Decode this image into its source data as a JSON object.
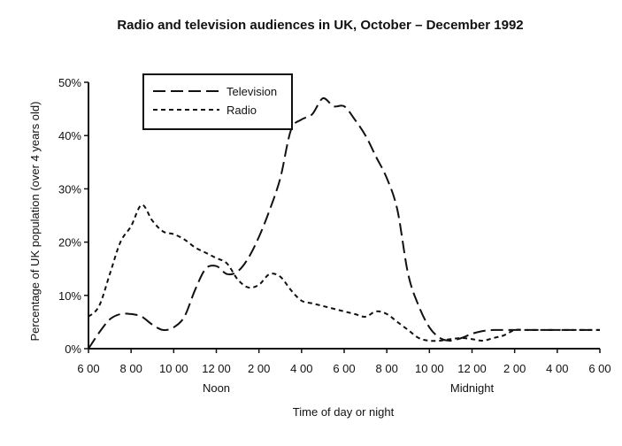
{
  "chart_data": {
    "type": "line",
    "title": "Radio and television audiences in UK, October – December 1992",
    "xlabel": "Time of day or night",
    "ylabel": "Percentage of UK population (over 4 years old)",
    "xlim": [
      0,
      24
    ],
    "ylim": [
      0,
      50
    ],
    "grid": false,
    "legend_position": "top-left",
    "x_tick_labels": [
      "6 00",
      "8 00",
      "10 00",
      "12 00",
      "2 00",
      "4 00",
      "6 00",
      "8 00",
      "10 00",
      "12 00",
      "2 00",
      "4 00",
      "6 00"
    ],
    "x_sublabels": [
      {
        "text": "Noon",
        "under_tick": 3
      },
      {
        "text": "Midnight",
        "under_tick": 9
      }
    ],
    "y_tick_values": [
      0,
      10,
      20,
      30,
      40,
      50
    ],
    "y_tick_labels": [
      "0%",
      "10%",
      "20%",
      "30%",
      "40%",
      "50%"
    ],
    "series": [
      {
        "name": "Television",
        "style": "long-dash",
        "x": [
          0,
          0.5,
          1,
          1.5,
          2,
          2.5,
          3,
          3.5,
          4,
          4.5,
          5,
          5.5,
          6,
          6.5,
          7,
          7.5,
          8,
          8.5,
          9,
          9.5,
          10,
          10.5,
          11,
          11.5,
          12,
          12.5,
          13,
          13.5,
          14,
          14.5,
          15,
          15.5,
          16,
          16.5,
          17,
          17.5,
          18,
          18.5,
          19,
          19.5,
          20,
          20.5,
          21,
          21.5,
          22,
          22.5,
          23,
          23.5,
          24
        ],
        "y": [
          0,
          3,
          5.5,
          6.5,
          6.5,
          6,
          4.5,
          3.5,
          4,
          6,
          11,
          15,
          15.5,
          14,
          14.5,
          17,
          21,
          26,
          32,
          41,
          43,
          44,
          47,
          45.5,
          45.5,
          43,
          40,
          36,
          32,
          26,
          14,
          8,
          4,
          2,
          1.5,
          2,
          2.8,
          3.3,
          3.5,
          3.5,
          3.5,
          3.5,
          3.5,
          3.5,
          3.5,
          3.5,
          3.5,
          3.5,
          3.5
        ]
      },
      {
        "name": "Radio",
        "style": "short-dash",
        "x": [
          0,
          0.5,
          1,
          1.5,
          2,
          2.5,
          3,
          3.5,
          4,
          4.5,
          5,
          5.5,
          6,
          6.5,
          7,
          7.5,
          8,
          8.5,
          9,
          9.5,
          10,
          10.5,
          11,
          11.5,
          12,
          12.5,
          13,
          13.5,
          14,
          14.5,
          15,
          15.5,
          16,
          16.5,
          17,
          17.5,
          18,
          18.5,
          19,
          19.5,
          20,
          20.5,
          21,
          21.5,
          22,
          22.5,
          23,
          23.5,
          24
        ],
        "y": [
          6,
          8,
          14,
          20,
          23,
          27,
          24,
          22,
          21.5,
          20.5,
          19,
          18,
          17,
          16,
          13,
          11.5,
          12,
          14,
          13.5,
          11,
          9,
          8.5,
          8,
          7.5,
          7,
          6.5,
          6,
          7,
          6.5,
          5,
          3.5,
          2,
          1.5,
          1.5,
          1.8,
          2,
          1.8,
          1.5,
          2,
          2.5,
          3.5,
          3.5,
          3.5,
          3.5,
          3.5,
          3.5,
          3.5,
          3.5,
          3.5
        ]
      }
    ]
  }
}
